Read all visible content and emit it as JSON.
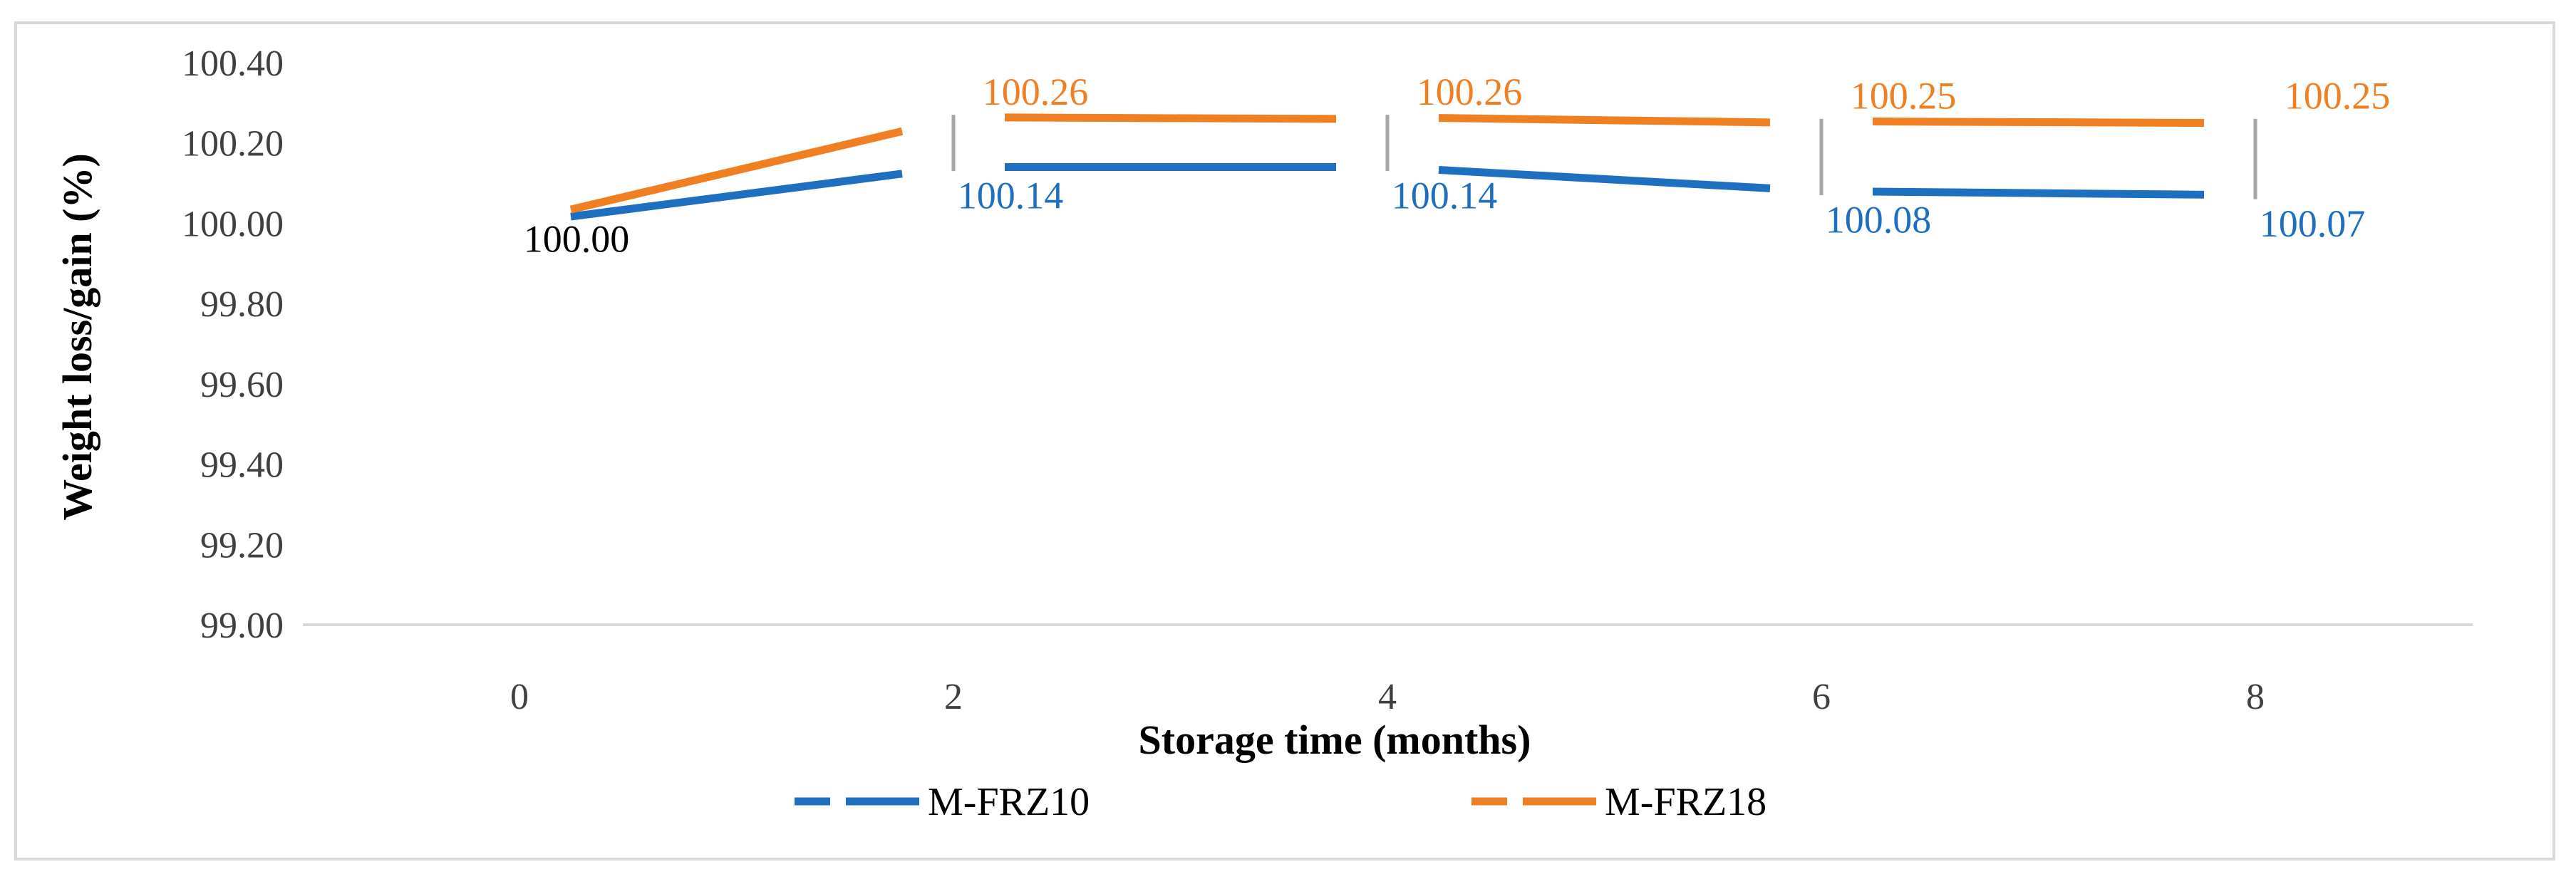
{
  "chart_data": {
    "type": "line",
    "title": "",
    "xlabel": "Storage time (months)",
    "ylabel": "Weight loss/gain (%)",
    "categories": [
      "0",
      "2",
      "4",
      "6",
      "8"
    ],
    "ylim": [
      99.0,
      100.4
    ],
    "yticks": [
      "99.00",
      "99.20",
      "99.40",
      "99.60",
      "99.80",
      "100.00",
      "100.20",
      "100.40"
    ],
    "series": [
      {
        "name": "M-FRZ10",
        "color": "#1f6fc0",
        "values": [
          100.0,
          100.14,
          100.14,
          100.08,
          100.07
        ],
        "labels": [
          "100.00",
          "100.14",
          "100.14",
          "100.08",
          "100.07"
        ]
      },
      {
        "name": "M-FRZ18",
        "color": "#f07f22",
        "values": [
          100.0,
          100.26,
          100.26,
          100.25,
          100.25
        ],
        "labels": [
          "",
          "100.26",
          "100.26",
          "100.25",
          "100.25"
        ]
      }
    ],
    "error_bar_color": "#a6a6a6",
    "legend_position": "bottom",
    "grid": false
  }
}
